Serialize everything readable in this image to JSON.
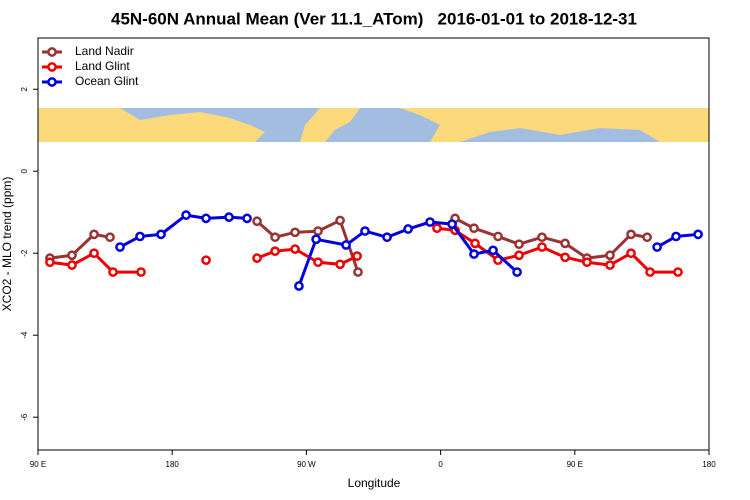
{
  "chart_data": {
    "type": "line",
    "title": "45N-60N Annual Mean (Ver 11.1_ATom)   2016-01-01 to 2018-12-31",
    "x_label": "Longitude",
    "y_label": "XCO2 - MLO trend (ppm)",
    "xlim": [
      90,
      540
    ],
    "ylim": [
      -6.8,
      3.25
    ],
    "xticks": [
      {
        "value": 90,
        "label": "90 E"
      },
      {
        "value": 180,
        "label": "180"
      },
      {
        "value": 270,
        "label": "90 W"
      },
      {
        "value": 360,
        "label": "0"
      },
      {
        "value": 450,
        "label": "90 E"
      },
      {
        "value": 540,
        "label": "180"
      }
    ],
    "yticks": [
      2,
      0,
      -2,
      -4,
      -6
    ],
    "legend": "top-left",
    "series": [
      {
        "name": "Land Nadir",
        "color": "#993333",
        "x": [
          98.0,
          112.8,
          127.6,
          138.3,
          null,
          236.9,
          249.0,
          262.4,
          277.8,
          292.6,
          304.6,
          null,
          369.7,
          382.4,
          398.5,
          412.6,
          428.0,
          443.5,
          458.2,
          473.6,
          487.7,
          498.5
        ],
        "values": [
          -2.12,
          -2.05,
          -1.54,
          -1.61,
          null,
          -1.22,
          -1.61,
          -1.49,
          -1.46,
          -1.2,
          -2.46,
          null,
          -1.15,
          -1.39,
          -1.59,
          -1.78,
          -1.61,
          -1.76,
          -2.12,
          -2.05,
          -1.54,
          -1.61
        ]
      },
      {
        "name": "Land Glint",
        "color": "#ee0000",
        "x": [
          98.0,
          112.8,
          127.6,
          140.3,
          159.1,
          null,
          202.7,
          null,
          236.9,
          249.0,
          262.4,
          277.8,
          292.6,
          304.0,
          null,
          357.6,
          369.7,
          383.1,
          398.5,
          412.6,
          428.0,
          443.5,
          458.2,
          473.6,
          487.7,
          500.5,
          519.2
        ],
        "values": [
          -2.22,
          -2.29,
          -2.0,
          -2.46,
          -2.46,
          null,
          -2.17,
          null,
          -2.12,
          -1.95,
          -1.9,
          -2.22,
          -2.27,
          -2.07,
          null,
          -1.39,
          -1.44,
          -1.76,
          -2.17,
          -2.05,
          -1.85,
          -2.1,
          -2.22,
          -2.29,
          -2.0,
          -2.46,
          -2.46
        ]
      },
      {
        "name": "Ocean Glint",
        "color": "#0000dd",
        "x": [
          145.0,
          158.4,
          172.5,
          189.3,
          202.7,
          218.1,
          230.2,
          null,
          265.0,
          276.5,
          296.6,
          309.3,
          324.1,
          338.2,
          352.9,
          367.7,
          382.4,
          395.2,
          411.3,
          null,
          505.2,
          517.9,
          532.7
        ],
        "values": [
          -1.85,
          -1.59,
          -1.54,
          -1.07,
          -1.15,
          -1.12,
          -1.15,
          null,
          -2.8,
          -1.66,
          -1.8,
          -1.46,
          -1.61,
          -1.41,
          -1.24,
          -1.29,
          -2.02,
          -1.93,
          -2.46,
          null,
          -1.85,
          -1.59,
          -1.54
        ]
      }
    ]
  }
}
